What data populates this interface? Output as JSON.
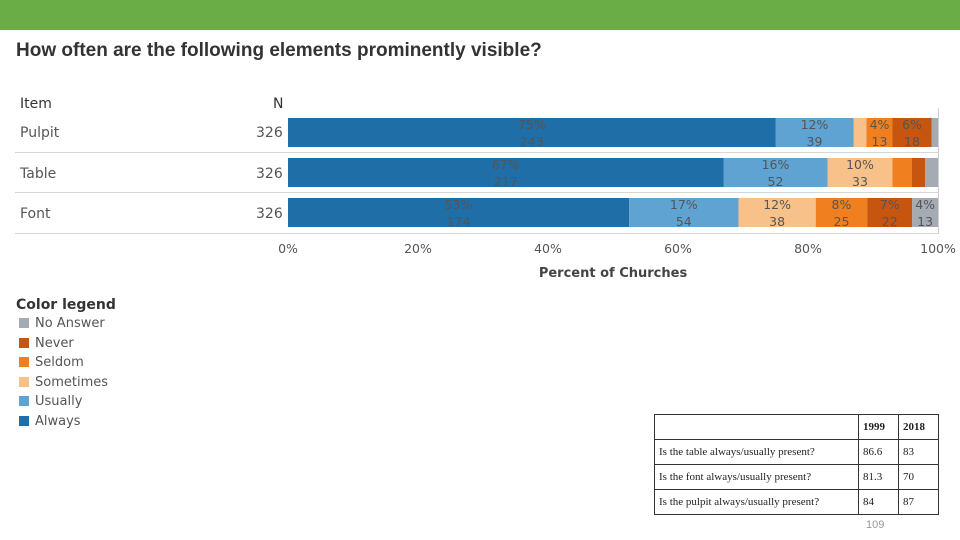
{
  "title": "How often are the following elements prominently visible?",
  "header": {
    "item_label": "Item",
    "n_label": "N"
  },
  "colors": {
    "topbar": "#6aad46",
    "Always": "#1f6ea8",
    "Usually": "#5ea3d2",
    "Sometimes": "#f8c18a",
    "Seldom": "#f07f20",
    "Never": "#c5550f",
    "No Answer": "#a4abb2"
  },
  "chart_data": {
    "type": "bar",
    "orientation": "horizontal-stacked-100",
    "categories": [
      "Pulpit",
      "Table",
      "Font"
    ],
    "n": [
      "326",
      "326",
      "326"
    ],
    "series": [
      {
        "name": "Always",
        "percent": [
          75,
          67,
          53
        ],
        "counts": [
          243,
          217,
          174
        ],
        "pct_labels": [
          "75%",
          "67%",
          "53%"
        ],
        "count_labels": [
          "243",
          "217",
          "174"
        ]
      },
      {
        "name": "Usually",
        "percent": [
          12,
          16,
          17
        ],
        "counts": [
          39,
          52,
          54
        ],
        "pct_labels": [
          "12%",
          "16%",
          "17%"
        ],
        "count_labels": [
          "39",
          "52",
          "54"
        ]
      },
      {
        "name": "Sometimes",
        "percent": [
          2,
          10,
          12
        ],
        "counts": [
          null,
          33,
          38
        ],
        "pct_labels": [
          "",
          "10%",
          "12%"
        ],
        "count_labels": [
          "",
          "33",
          "38"
        ]
      },
      {
        "name": "Seldom",
        "percent": [
          4,
          3,
          8
        ],
        "counts": [
          13,
          null,
          25
        ],
        "pct_labels": [
          "4%",
          "",
          "8%"
        ],
        "count_labels": [
          "13",
          "",
          "25"
        ]
      },
      {
        "name": "Never",
        "percent": [
          6,
          2,
          7
        ],
        "counts": [
          18,
          null,
          22
        ],
        "pct_labels": [
          "6%",
          "",
          "7%"
        ],
        "count_labels": [
          "18",
          "",
          "22"
        ]
      },
      {
        "name": "No Answer",
        "percent": [
          1,
          2,
          4
        ],
        "counts": [
          null,
          null,
          13
        ],
        "pct_labels": [
          "",
          "",
          "4%"
        ],
        "count_labels": [
          "",
          "",
          "13"
        ]
      }
    ],
    "xticks": [
      "0%",
      "20%",
      "40%",
      "60%",
      "80%",
      "100%"
    ],
    "xlim": [
      0,
      100
    ],
    "xlabel": "Percent of Churches"
  },
  "legend": {
    "title": "Color legend",
    "items": [
      {
        "label": "No Answer",
        "key": "No Answer"
      },
      {
        "label": "Never",
        "key": "Never"
      },
      {
        "label": "Seldom",
        "key": "Seldom"
      },
      {
        "label": "Sometimes",
        "key": "Sometimes"
      },
      {
        "label": "Usually",
        "key": "Usually"
      },
      {
        "label": "Always",
        "key": "Always"
      }
    ]
  },
  "comparison_table": {
    "columns": [
      "",
      "1999",
      "2018"
    ],
    "rows": [
      [
        "Is the table always/usually present?",
        "86.6",
        "83"
      ],
      [
        "Is the font always/usually present?",
        "81.3",
        "70"
      ],
      [
        "Is the pulpit always/usually present?",
        "84",
        "87"
      ]
    ]
  },
  "page_number": "109"
}
